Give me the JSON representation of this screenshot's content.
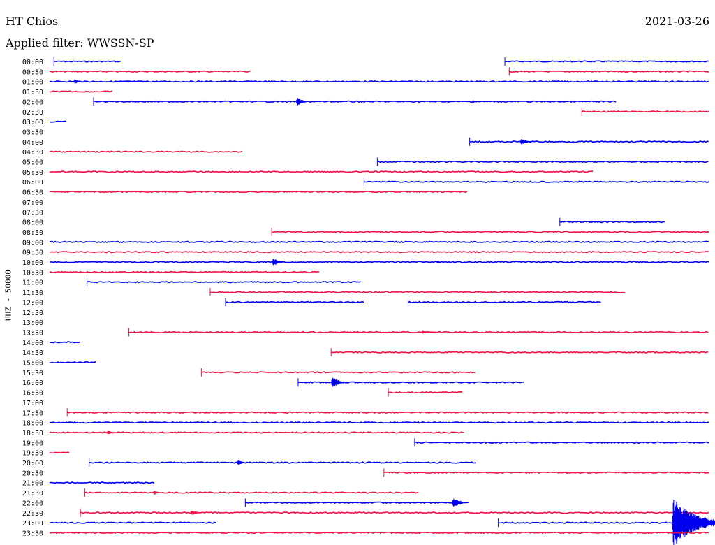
{
  "header": {
    "station": "HT Chios",
    "date": "2021-03-26",
    "filter": "Applied filter: WWSSN-SP",
    "channel": "HHZ - 50000"
  },
  "colors": {
    "even": "#0000ee",
    "odd": "#ee1144"
  },
  "chart_data": {
    "type": "line",
    "title": "HT Chios",
    "xlabel": "",
    "ylabel": "HHZ - 50000",
    "x_range_minutes": [
      0,
      30
    ],
    "rows": [
      {
        "label": "00:00",
        "segments": [
          [
            0.2,
            3.3
          ],
          [
            20.7,
            30
          ]
        ],
        "events": []
      },
      {
        "label": "00:30",
        "segments": [
          [
            0,
            9.2
          ],
          [
            20.9,
            30
          ]
        ],
        "events": []
      },
      {
        "label": "01:00",
        "segments": [
          [
            0,
            30
          ]
        ],
        "events": [
          [
            1.1,
            6
          ]
        ]
      },
      {
        "label": "01:30",
        "segments": [
          [
            0,
            2.9
          ]
        ],
        "events": []
      },
      {
        "label": "02:00",
        "segments": [
          [
            2,
            25.8
          ]
        ],
        "events": [
          [
            2.5,
            4
          ],
          [
            11.2,
            9
          ],
          [
            19.2,
            4
          ]
        ]
      },
      {
        "label": "02:30",
        "segments": [
          [
            24.2,
            30
          ]
        ],
        "events": []
      },
      {
        "label": "03:00",
        "segments": [
          [
            0,
            0.8
          ]
        ],
        "events": []
      },
      {
        "label": "03:30",
        "segments": [],
        "events": []
      },
      {
        "label": "04:00",
        "segments": [
          [
            19.1,
            30
          ]
        ],
        "events": [
          [
            21.4,
            8
          ]
        ]
      },
      {
        "label": "04:30",
        "segments": [
          [
            0,
            8.8
          ]
        ],
        "events": [
          [
            0.3,
            3
          ]
        ]
      },
      {
        "label": "05:00",
        "segments": [
          [
            14.9,
            30
          ]
        ],
        "events": []
      },
      {
        "label": "05:30",
        "segments": [
          [
            0,
            24.7
          ]
        ],
        "events": []
      },
      {
        "label": "06:00",
        "segments": [
          [
            14.3,
            30
          ]
        ],
        "events": []
      },
      {
        "label": "06:30",
        "segments": [
          [
            0,
            19
          ]
        ],
        "events": []
      },
      {
        "label": "07:00",
        "segments": [],
        "events": []
      },
      {
        "label": "07:30",
        "segments": [],
        "events": []
      },
      {
        "label": "08:00",
        "segments": [
          [
            23.2,
            28
          ]
        ],
        "events": []
      },
      {
        "label": "08:30",
        "segments": [
          [
            10.1,
            30
          ]
        ],
        "events": []
      },
      {
        "label": "09:00",
        "segments": [
          [
            0,
            30
          ]
        ],
        "events": [
          [
            4.1,
            3
          ]
        ]
      },
      {
        "label": "09:30",
        "segments": [
          [
            0,
            30
          ]
        ],
        "events": []
      },
      {
        "label": "10:00",
        "segments": [
          [
            0,
            30
          ]
        ],
        "events": [
          [
            10.1,
            9
          ],
          [
            17.6,
            4
          ]
        ]
      },
      {
        "label": "10:30",
        "segments": [
          [
            0,
            12.3
          ]
        ],
        "events": []
      },
      {
        "label": "11:00",
        "segments": [
          [
            1.7,
            14.2
          ]
        ],
        "events": []
      },
      {
        "label": "11:30",
        "segments": [
          [
            7.3,
            26.2
          ]
        ],
        "events": []
      },
      {
        "label": "12:00",
        "segments": [
          [
            8,
            14.3
          ],
          [
            16.3,
            25.1
          ]
        ],
        "events": []
      },
      {
        "label": "12:30",
        "segments": [],
        "events": []
      },
      {
        "label": "13:00",
        "segments": [],
        "events": []
      },
      {
        "label": "13:30",
        "segments": [
          [
            3.6,
            30
          ]
        ],
        "events": [
          [
            5.7,
            3
          ],
          [
            6.8,
            3
          ],
          [
            16.9,
            5
          ]
        ]
      },
      {
        "label": "14:00",
        "segments": [
          [
            0,
            1.4
          ]
        ],
        "events": []
      },
      {
        "label": "14:30",
        "segments": [
          [
            12.8,
            30
          ]
        ],
        "events": []
      },
      {
        "label": "15:00",
        "segments": [
          [
            0,
            2.1
          ]
        ],
        "events": []
      },
      {
        "label": "15:30",
        "segments": [
          [
            6.9,
            19.4
          ]
        ],
        "events": []
      },
      {
        "label": "16:00",
        "segments": [
          [
            11.3,
            21.6
          ]
        ],
        "events": [
          [
            12.8,
            11
          ]
        ]
      },
      {
        "label": "16:30",
        "segments": [
          [
            15.4,
            18.8
          ]
        ],
        "events": [
          [
            16.3,
            3
          ]
        ]
      },
      {
        "label": "17:00",
        "segments": [],
        "events": []
      },
      {
        "label": "17:30",
        "segments": [
          [
            0.8,
            30
          ]
        ],
        "events": []
      },
      {
        "label": "18:00",
        "segments": [
          [
            0,
            30
          ]
        ],
        "events": []
      },
      {
        "label": "18:30",
        "segments": [
          [
            0,
            18.9
          ]
        ],
        "events": [
          [
            2.6,
            6
          ]
        ]
      },
      {
        "label": "19:00",
        "segments": [
          [
            16.6,
            30
          ]
        ],
        "events": []
      },
      {
        "label": "19:30",
        "segments": [
          [
            0,
            0.9
          ]
        ],
        "events": []
      },
      {
        "label": "20:00",
        "segments": [
          [
            1.8,
            19.4
          ]
        ],
        "events": [
          [
            8.5,
            7
          ]
        ]
      },
      {
        "label": "20:30",
        "segments": [
          [
            15.2,
            30
          ]
        ],
        "events": []
      },
      {
        "label": "21:00",
        "segments": [
          [
            0,
            4.8
          ]
        ],
        "events": []
      },
      {
        "label": "21:30",
        "segments": [
          [
            1.6,
            16.8
          ]
        ],
        "events": [
          [
            4.7,
            6
          ]
        ]
      },
      {
        "label": "22:00",
        "segments": [
          [
            8.9,
            18.5
          ]
        ],
        "events": [
          [
            14.6,
            3
          ],
          [
            18.3,
            11
          ]
        ]
      },
      {
        "label": "22:30",
        "segments": [
          [
            1.4,
            30
          ]
        ],
        "events": [
          [
            6.4,
            7
          ],
          [
            11.1,
            3
          ]
        ]
      },
      {
        "label": "23:00",
        "segments": [
          [
            0,
            7.6
          ],
          [
            20.4,
            30
          ]
        ],
        "events": [
          [
            28.3,
            38
          ]
        ]
      },
      {
        "label": "23:30",
        "segments": [
          [
            0,
            30
          ]
        ],
        "events": [
          [
            1.3,
            3
          ],
          [
            11.1,
            3
          ]
        ]
      }
    ]
  }
}
